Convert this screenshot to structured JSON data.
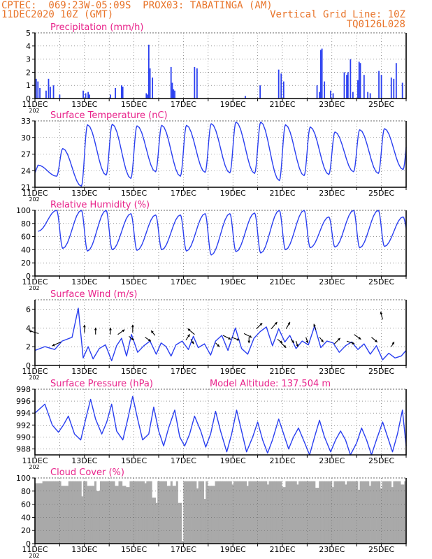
{
  "header": {
    "line1_left": "CPTEC:  069:23W-05:09S  PROX03: TABATINGA (AM)",
    "line2_left": "11DEC2020 10Z (GMT)",
    "line2_right": "Vertical Grid Line: 10Z",
    "line3_right": "TQ0126L028",
    "color": "#e8742a"
  },
  "colors": {
    "title": "#e8228a",
    "line": "#2a3ff0",
    "bar": "#2a3ff0",
    "cloud": "#a9a9a9",
    "axis": "#000000"
  },
  "x_ticks": [
    "11DEC",
    "13DEC",
    "15DEC",
    "17DEC",
    "19DEC",
    "21DEC",
    "23DEC",
    "25DEC"
  ],
  "x_sub": "202",
  "chart_data": [
    {
      "type": "bar",
      "title": "Precipitation (mm/h)",
      "x_range_days": [
        0,
        15
      ],
      "ylim": [
        0,
        5
      ],
      "yticks": [
        0,
        1,
        2,
        3,
        4,
        5
      ],
      "x": [
        0.05,
        0.12,
        0.2,
        0.45,
        0.55,
        0.62,
        0.75,
        1.0,
        1.95,
        2.05,
        2.15,
        2.2,
        3.05,
        3.25,
        3.5,
        3.55,
        4.5,
        4.55,
        4.6,
        4.65,
        4.75,
        5.5,
        5.55,
        5.6,
        5.65,
        6.45,
        6.55,
        8.5,
        9.1,
        9.85,
        9.95,
        10.05,
        11.4,
        11.5,
        11.55,
        11.6,
        11.7,
        11.95,
        12.05,
        12.5,
        12.6,
        12.65,
        12.75,
        12.85,
        13.05,
        13.1,
        13.15,
        13.3,
        13.45,
        13.55,
        13.9,
        14.0,
        14.4,
        14.5,
        14.6,
        14.85
      ],
      "values": [
        1.5,
        1.3,
        0.8,
        0.6,
        1.5,
        0.9,
        1.0,
        0.3,
        0.6,
        0.4,
        0.5,
        0.3,
        0.3,
        0.8,
        1.0,
        0.9,
        0.4,
        0.3,
        4.1,
        2.3,
        1.6,
        2.4,
        1.2,
        0.7,
        0.6,
        2.4,
        2.3,
        0.2,
        1.0,
        2.2,
        1.9,
        1.3,
        1.0,
        0.5,
        3.7,
        3.8,
        1.3,
        0.6,
        0.4,
        2.0,
        1.8,
        2.0,
        3.0,
        0.5,
        1.4,
        2.8,
        2.7,
        1.8,
        0.5,
        0.4,
        2.1,
        1.8,
        1.6,
        1.5,
        2.7,
        1.2
      ]
    },
    {
      "type": "line",
      "title": "Surface Temperature (nC)",
      "x_range_days": [
        0,
        15
      ],
      "ylim": [
        21,
        33
      ],
      "yticks": [
        21,
        24,
        27,
        30,
        33
      ],
      "min_hour": 7,
      "max_hour": 13,
      "daily_min": [
        23.0,
        21.2,
        23.2,
        22.6,
        23.8,
        23.0,
        23.7,
        23.6,
        23.5,
        22.2,
        23.1,
        23.3,
        23.8,
        23.5,
        24.2,
        24.5
      ],
      "daily_max": [
        25.0,
        28.0,
        32.3,
        32.4,
        32.1,
        32.2,
        32.2,
        32.5,
        32.8,
        32.8,
        32.3,
        31.9,
        31.0,
        31.4,
        31.6,
        32.3
      ]
    },
    {
      "type": "line",
      "title": "Relative Humidity (%)",
      "x_range_days": [
        0,
        15
      ],
      "ylim": [
        0,
        100
      ],
      "yticks": [
        0,
        20,
        40,
        60,
        80,
        100
      ],
      "min_hour": 13,
      "max_hour": 7,
      "daily_max": [
        100,
        100,
        100,
        95,
        93,
        93,
        95,
        95,
        96,
        100,
        100,
        90,
        100,
        100,
        90
      ],
      "daily_min": [
        68,
        42,
        38,
        40,
        39,
        40,
        38,
        32,
        37,
        35,
        40,
        43,
        44,
        43,
        45,
        55
      ]
    },
    {
      "type": "line",
      "title": "Surface Wind (m/s)",
      "x_range_days": [
        0,
        15
      ],
      "ylim": [
        0,
        7
      ],
      "yticks": [
        0,
        2,
        4,
        6
      ],
      "x": [
        0.0,
        0.4,
        0.8,
        1.1,
        1.5,
        1.75,
        1.95,
        2.15,
        2.35,
        2.6,
        2.85,
        3.1,
        3.3,
        3.5,
        3.7,
        3.9,
        4.15,
        4.4,
        4.65,
        4.9,
        5.1,
        5.3,
        5.5,
        5.7,
        5.95,
        6.2,
        6.4,
        6.6,
        6.85,
        7.1,
        7.3,
        7.55,
        7.8,
        8.1,
        8.35,
        8.6,
        8.85,
        9.1,
        9.35,
        9.6,
        9.85,
        10.1,
        10.3,
        10.55,
        10.8,
        11.05,
        11.3,
        11.55,
        11.8,
        12.05,
        12.3,
        12.55,
        12.8,
        13.05,
        13.3,
        13.55,
        13.8,
        14.05,
        14.3,
        14.55,
        14.8,
        15.0
      ],
      "values": [
        1.6,
        2.0,
        1.7,
        2.6,
        3.0,
        6.1,
        0.8,
        2.0,
        0.7,
        1.8,
        2.2,
        0.5,
        2.1,
        2.9,
        1.0,
        3.3,
        1.4,
        2.1,
        2.6,
        1.2,
        2.4,
        2.0,
        1.0,
        2.2,
        2.6,
        1.7,
        3.1,
        1.9,
        2.3,
        1.1,
        2.6,
        3.2,
        1.6,
        4.0,
        1.8,
        1.2,
        2.9,
        3.6,
        4.1,
        2.1,
        3.9,
        2.5,
        3.2,
        1.8,
        2.6,
        2.2,
        4.2,
        1.9,
        2.6,
        2.4,
        1.4,
        2.1,
        2.5,
        1.7,
        2.3,
        1.2,
        2.1,
        0.6,
        1.3,
        0.8,
        1.0,
        1.6
      ],
      "vectors": [
        {
          "x": 0.15,
          "y": 3.4,
          "dx": -10,
          "dy": -3
        },
        {
          "x": 1.05,
          "y": 2.5,
          "dx": -9,
          "dy": 4
        },
        {
          "x": 2.0,
          "y": 3.5,
          "dx": 0,
          "dy": -8
        },
        {
          "x": 2.45,
          "y": 3.3,
          "dx": 0,
          "dy": -7
        },
        {
          "x": 3.05,
          "y": 3.3,
          "dx": 0,
          "dy": -7
        },
        {
          "x": 3.35,
          "y": 3.3,
          "dx": 7,
          "dy": -5
        },
        {
          "x": 3.8,
          "y": 3.1,
          "dx": 5,
          "dy": 4
        },
        {
          "x": 3.95,
          "y": 3.5,
          "dx": 0,
          "dy": -8
        },
        {
          "x": 4.45,
          "y": 3.0,
          "dx": 6,
          "dy": 4
        },
        {
          "x": 4.85,
          "y": 3.2,
          "dx": -4,
          "dy": -5
        },
        {
          "x": 6.1,
          "y": 2.7,
          "dx": 4,
          "dy": -6
        },
        {
          "x": 6.3,
          "y": 2.8,
          "dx": 3,
          "dy": 5
        },
        {
          "x": 6.45,
          "y": 3.3,
          "dx": -7,
          "dy": -6
        },
        {
          "x": 7.3,
          "y": 2.4,
          "dx": 4,
          "dy": 4
        },
        {
          "x": 7.6,
          "y": 3.2,
          "dx": 8,
          "dy": 4
        },
        {
          "x": 7.95,
          "y": 3.0,
          "dx": 8,
          "dy": 3
        },
        {
          "x": 8.45,
          "y": 3.4,
          "dx": 8,
          "dy": 4
        },
        {
          "x": 8.65,
          "y": 3.0,
          "dx": 0,
          "dy": 6
        },
        {
          "x": 8.95,
          "y": 3.9,
          "dx": 6,
          "dy": -6
        },
        {
          "x": 9.55,
          "y": 3.9,
          "dx": 6,
          "dy": -7
        },
        {
          "x": 9.8,
          "y": 2.8,
          "dx": 5,
          "dy": 4
        },
        {
          "x": 9.95,
          "y": 2.4,
          "dx": 5,
          "dy": 5
        },
        {
          "x": 10.15,
          "y": 3.9,
          "dx": 4,
          "dy": -7
        },
        {
          "x": 10.35,
          "y": 2.8,
          "dx": 3,
          "dy": 4
        },
        {
          "x": 10.55,
          "y": 2.6,
          "dx": 2,
          "dy": 6
        },
        {
          "x": 10.95,
          "y": 3.0,
          "dx": 2,
          "dy": 6
        },
        {
          "x": 11.35,
          "y": 3.8,
          "dx": -2,
          "dy": -6
        },
        {
          "x": 11.5,
          "y": 3.0,
          "dx": 4,
          "dy": 5
        },
        {
          "x": 12.1,
          "y": 2.3,
          "dx": 6,
          "dy": -6
        },
        {
          "x": 12.6,
          "y": 2.6,
          "dx": 8,
          "dy": 3
        },
        {
          "x": 12.9,
          "y": 3.3,
          "dx": 7,
          "dy": 5
        },
        {
          "x": 13.6,
          "y": 3.0,
          "dx": 6,
          "dy": 5
        },
        {
          "x": 14.05,
          "y": 4.9,
          "dx": -2,
          "dy": -8
        },
        {
          "x": 14.4,
          "y": 2.0,
          "dx": 3,
          "dy": -5
        }
      ]
    },
    {
      "type": "line",
      "title": "Surface Pressure (hPa)",
      "annotation": "Model Altitude: 137.504 m",
      "x_range_days": [
        0,
        15
      ],
      "ylim": [
        987,
        998
      ],
      "yticks": [
        988,
        990,
        992,
        994,
        996,
        998
      ],
      "x": [
        0.0,
        0.4,
        0.7,
        0.95,
        1.15,
        1.35,
        1.6,
        1.85,
        2.05,
        2.25,
        2.45,
        2.7,
        2.9,
        3.1,
        3.3,
        3.55,
        3.75,
        3.95,
        4.15,
        4.35,
        4.6,
        4.8,
        5.0,
        5.2,
        5.4,
        5.65,
        5.85,
        6.05,
        6.25,
        6.45,
        6.7,
        6.9,
        7.1,
        7.3,
        7.5,
        7.75,
        7.95,
        8.15,
        8.35,
        8.55,
        8.8,
        9.0,
        9.2,
        9.4,
        9.6,
        9.85,
        10.05,
        10.25,
        10.45,
        10.65,
        10.9,
        11.1,
        11.3,
        11.5,
        11.7,
        11.95,
        12.15,
        12.35,
        12.55,
        12.75,
        13.0,
        13.2,
        13.4,
        13.6,
        13.8,
        14.05,
        14.25,
        14.45,
        14.65,
        14.85,
        15.0
      ],
      "values": [
        994.0,
        995.5,
        992.0,
        990.8,
        992.0,
        993.5,
        990.5,
        989.5,
        993.0,
        996.3,
        993.0,
        990.5,
        992.5,
        995.5,
        991.0,
        989.5,
        993.0,
        996.8,
        993.0,
        989.5,
        990.5,
        995.0,
        991.0,
        988.5,
        991.5,
        994.5,
        990.0,
        988.5,
        990.5,
        993.5,
        991.0,
        988.3,
        990.5,
        994.3,
        991.0,
        987.5,
        990.5,
        994.5,
        991.0,
        987.5,
        990.0,
        992.5,
        989.5,
        987.3,
        989.5,
        993.0,
        990.5,
        988.0,
        990.0,
        991.5,
        989.0,
        987.0,
        990.0,
        992.8,
        990.0,
        987.5,
        989.5,
        991.0,
        989.5,
        987.0,
        989.0,
        991.5,
        989.5,
        987.0,
        989.5,
        992.5,
        990.0,
        987.5,
        990.5,
        994.5,
        988.5
      ]
    },
    {
      "type": "bar",
      "title": "Cloud Cover (%)",
      "x_range_days": [
        0,
        15
      ],
      "ylim": [
        0,
        100
      ],
      "yticks": [
        0,
        20,
        40,
        60,
        80,
        100
      ],
      "typical": 95,
      "dips": [
        {
          "x": 1.9,
          "v": 72
        },
        {
          "x": 2.55,
          "v": 80
        },
        {
          "x": 3.3,
          "v": 88
        },
        {
          "x": 3.75,
          "v": 86
        },
        {
          "x": 4.45,
          "v": 92
        },
        {
          "x": 4.8,
          "v": 70
        },
        {
          "x": 4.92,
          "v": 62
        },
        {
          "x": 5.4,
          "v": 88
        },
        {
          "x": 5.85,
          "v": 62
        },
        {
          "x": 5.95,
          "v": 4
        },
        {
          "x": 6.55,
          "v": 84
        },
        {
          "x": 6.85,
          "v": 68
        },
        {
          "x": 7.2,
          "v": 88
        },
        {
          "x": 8.0,
          "v": 90
        },
        {
          "x": 8.6,
          "v": 88
        },
        {
          "x": 9.4,
          "v": 90
        },
        {
          "x": 10.05,
          "v": 86
        },
        {
          "x": 10.6,
          "v": 90
        },
        {
          "x": 11.4,
          "v": 85
        },
        {
          "x": 12.05,
          "v": 86
        },
        {
          "x": 12.55,
          "v": 90
        },
        {
          "x": 13.1,
          "v": 82
        },
        {
          "x": 13.55,
          "v": 88
        },
        {
          "x": 14.0,
          "v": 84
        },
        {
          "x": 14.45,
          "v": 86
        },
        {
          "x": 14.85,
          "v": 90
        }
      ]
    }
  ]
}
